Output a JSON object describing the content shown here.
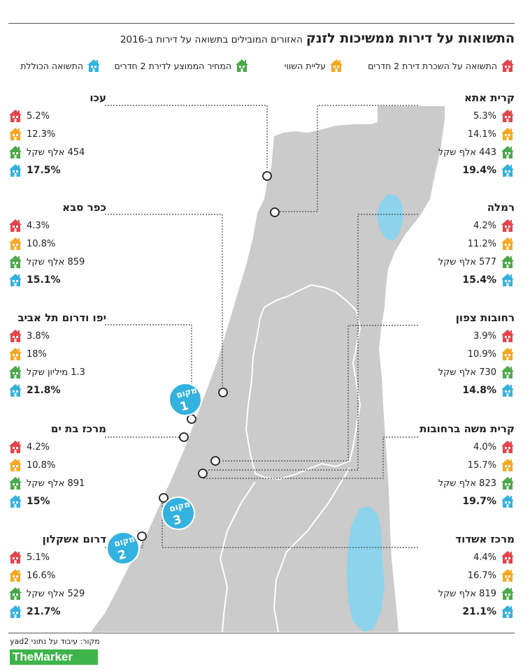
{
  "title": {
    "main": "התשואות על דירות ממשיכות לזנק",
    "sub": "האזורים המובילים בתשואה על דירות ב-2016"
  },
  "colors": {
    "red": "#e8434a",
    "orange": "#f7a823",
    "green": "#4aa94a",
    "blue": "#33b2e0",
    "land": "#cacbca",
    "water": "#8dd3ec",
    "badge": "#33b2e0"
  },
  "legend": [
    {
      "icon": "red-house-icon",
      "color": "red",
      "label": "התשואה על השכרת דירת 2 חדרים"
    },
    {
      "icon": "orange-house-icon",
      "color": "orange",
      "label": "עליית השווי"
    },
    {
      "icon": "green-house-icon",
      "color": "green",
      "label": "המחיר הממוצע לדירת 2 חדרים"
    },
    {
      "icon": "blue-house-icon",
      "color": "blue",
      "label": "התשואה הכוללת"
    }
  ],
  "regions": [
    {
      "name": "עכו",
      "rent_yield": "5.2%",
      "value_rise": "12.3%",
      "avg_price": "454 אלף שקל",
      "total": "17.5%"
    },
    {
      "name": "כפר סבא",
      "rent_yield": "4.3%",
      "value_rise": "10.8%",
      "avg_price": "859 אלף שקל",
      "total": "15.1%"
    },
    {
      "name": "יפו ודרום תל אביב",
      "rent_yield": "3.8%",
      "value_rise": "18%",
      "avg_price": "1.3 מיליון שקל",
      "total": "21.8%"
    },
    {
      "name": "מרכז בת ים",
      "rent_yield": "4.2%",
      "value_rise": "10.8%",
      "avg_price": "891 אלף שקל",
      "total": "15%"
    },
    {
      "name": "דרום אשקלון",
      "rent_yield": "5.1%",
      "value_rise": "16.6%",
      "avg_price": "529 אלף שקל",
      "total": "21.7%"
    },
    {
      "name": "קרית אתא",
      "rent_yield": "5.3%",
      "value_rise": "14.1%",
      "avg_price": "443 אלף שקל",
      "total": "19.4%"
    },
    {
      "name": "רמלה",
      "rent_yield": "4.2%",
      "value_rise": "11.2%",
      "avg_price": "577 אלף שקל",
      "total": "15.4%"
    },
    {
      "name": "רחובות צפון",
      "rent_yield": "3.9%",
      "value_rise": "10.9%",
      "avg_price": "730 אלף שקל",
      "total": "14.8%"
    },
    {
      "name": "קרית משה ברחובות",
      "rent_yield": "4.0%",
      "value_rise": "15.7%",
      "avg_price": "823 אלף שקל",
      "total": "19.7%"
    },
    {
      "name": "מרכז אשדוד",
      "rent_yield": "4.4%",
      "value_rise": "16.7%",
      "avg_price": "819 אלף שקל",
      "total": "21.1%"
    }
  ],
  "badges": [
    {
      "label": "מקום",
      "rank": "1"
    },
    {
      "label": "מקום",
      "rank": "3"
    },
    {
      "label": "מקום",
      "rank": "2"
    }
  ],
  "source": "מקור: עיבוד על נתוני yad2",
  "logo": "TheMarker"
}
